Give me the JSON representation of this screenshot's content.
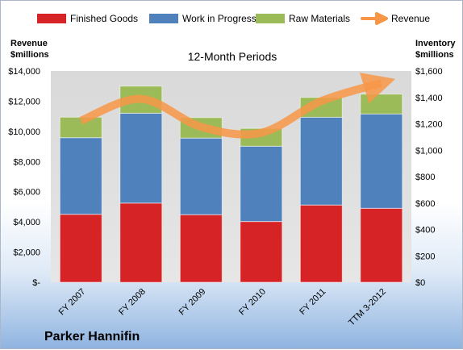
{
  "company": "Parker Hannifin",
  "chart_data": {
    "type": "bar",
    "stacked": true,
    "title": "12-Month Periods",
    "categories": [
      "FY 2007",
      "FY 2008",
      "FY 2009",
      "FY 2010",
      "FY 2011",
      "TTM 3-2012"
    ],
    "left_axis": {
      "label_line1": "Revenue",
      "label_line2": "$millions",
      "ylim": [
        0,
        14000
      ],
      "ticks": [
        "$-",
        "$2,000",
        "$4,000",
        "$6,000",
        "$8,000",
        "$10,000",
        "$12,000",
        "$14,000"
      ]
    },
    "right_axis": {
      "label_line1": "Inventory",
      "label_line2": "$millions",
      "ylim": [
        0,
        1600
      ],
      "ticks": [
        "$0",
        "$200",
        "$400",
        "$600",
        "$800",
        "$1,000",
        "$1,200",
        "$1,400",
        "$1,600"
      ]
    },
    "series": [
      {
        "name": "Finished Goods",
        "axis": "right",
        "color": "#d62426",
        "values": [
          515,
          600,
          512,
          460,
          585,
          560
        ]
      },
      {
        "name": "Work in Progress",
        "axis": "right",
        "color": "#4f81bd",
        "values": [
          580,
          680,
          580,
          570,
          665,
          715
        ]
      },
      {
        "name": "Raw Materials",
        "axis": "right",
        "color": "#9bbb59",
        "values": [
          155,
          205,
          155,
          135,
          150,
          150
        ]
      },
      {
        "name": "Revenue",
        "axis": "left",
        "type": "line",
        "color": "#f79646",
        "values": [
          10700,
          12150,
          10300,
          9900,
          12000,
          13200
        ]
      }
    ],
    "legend_position": "top",
    "grid": false
  }
}
